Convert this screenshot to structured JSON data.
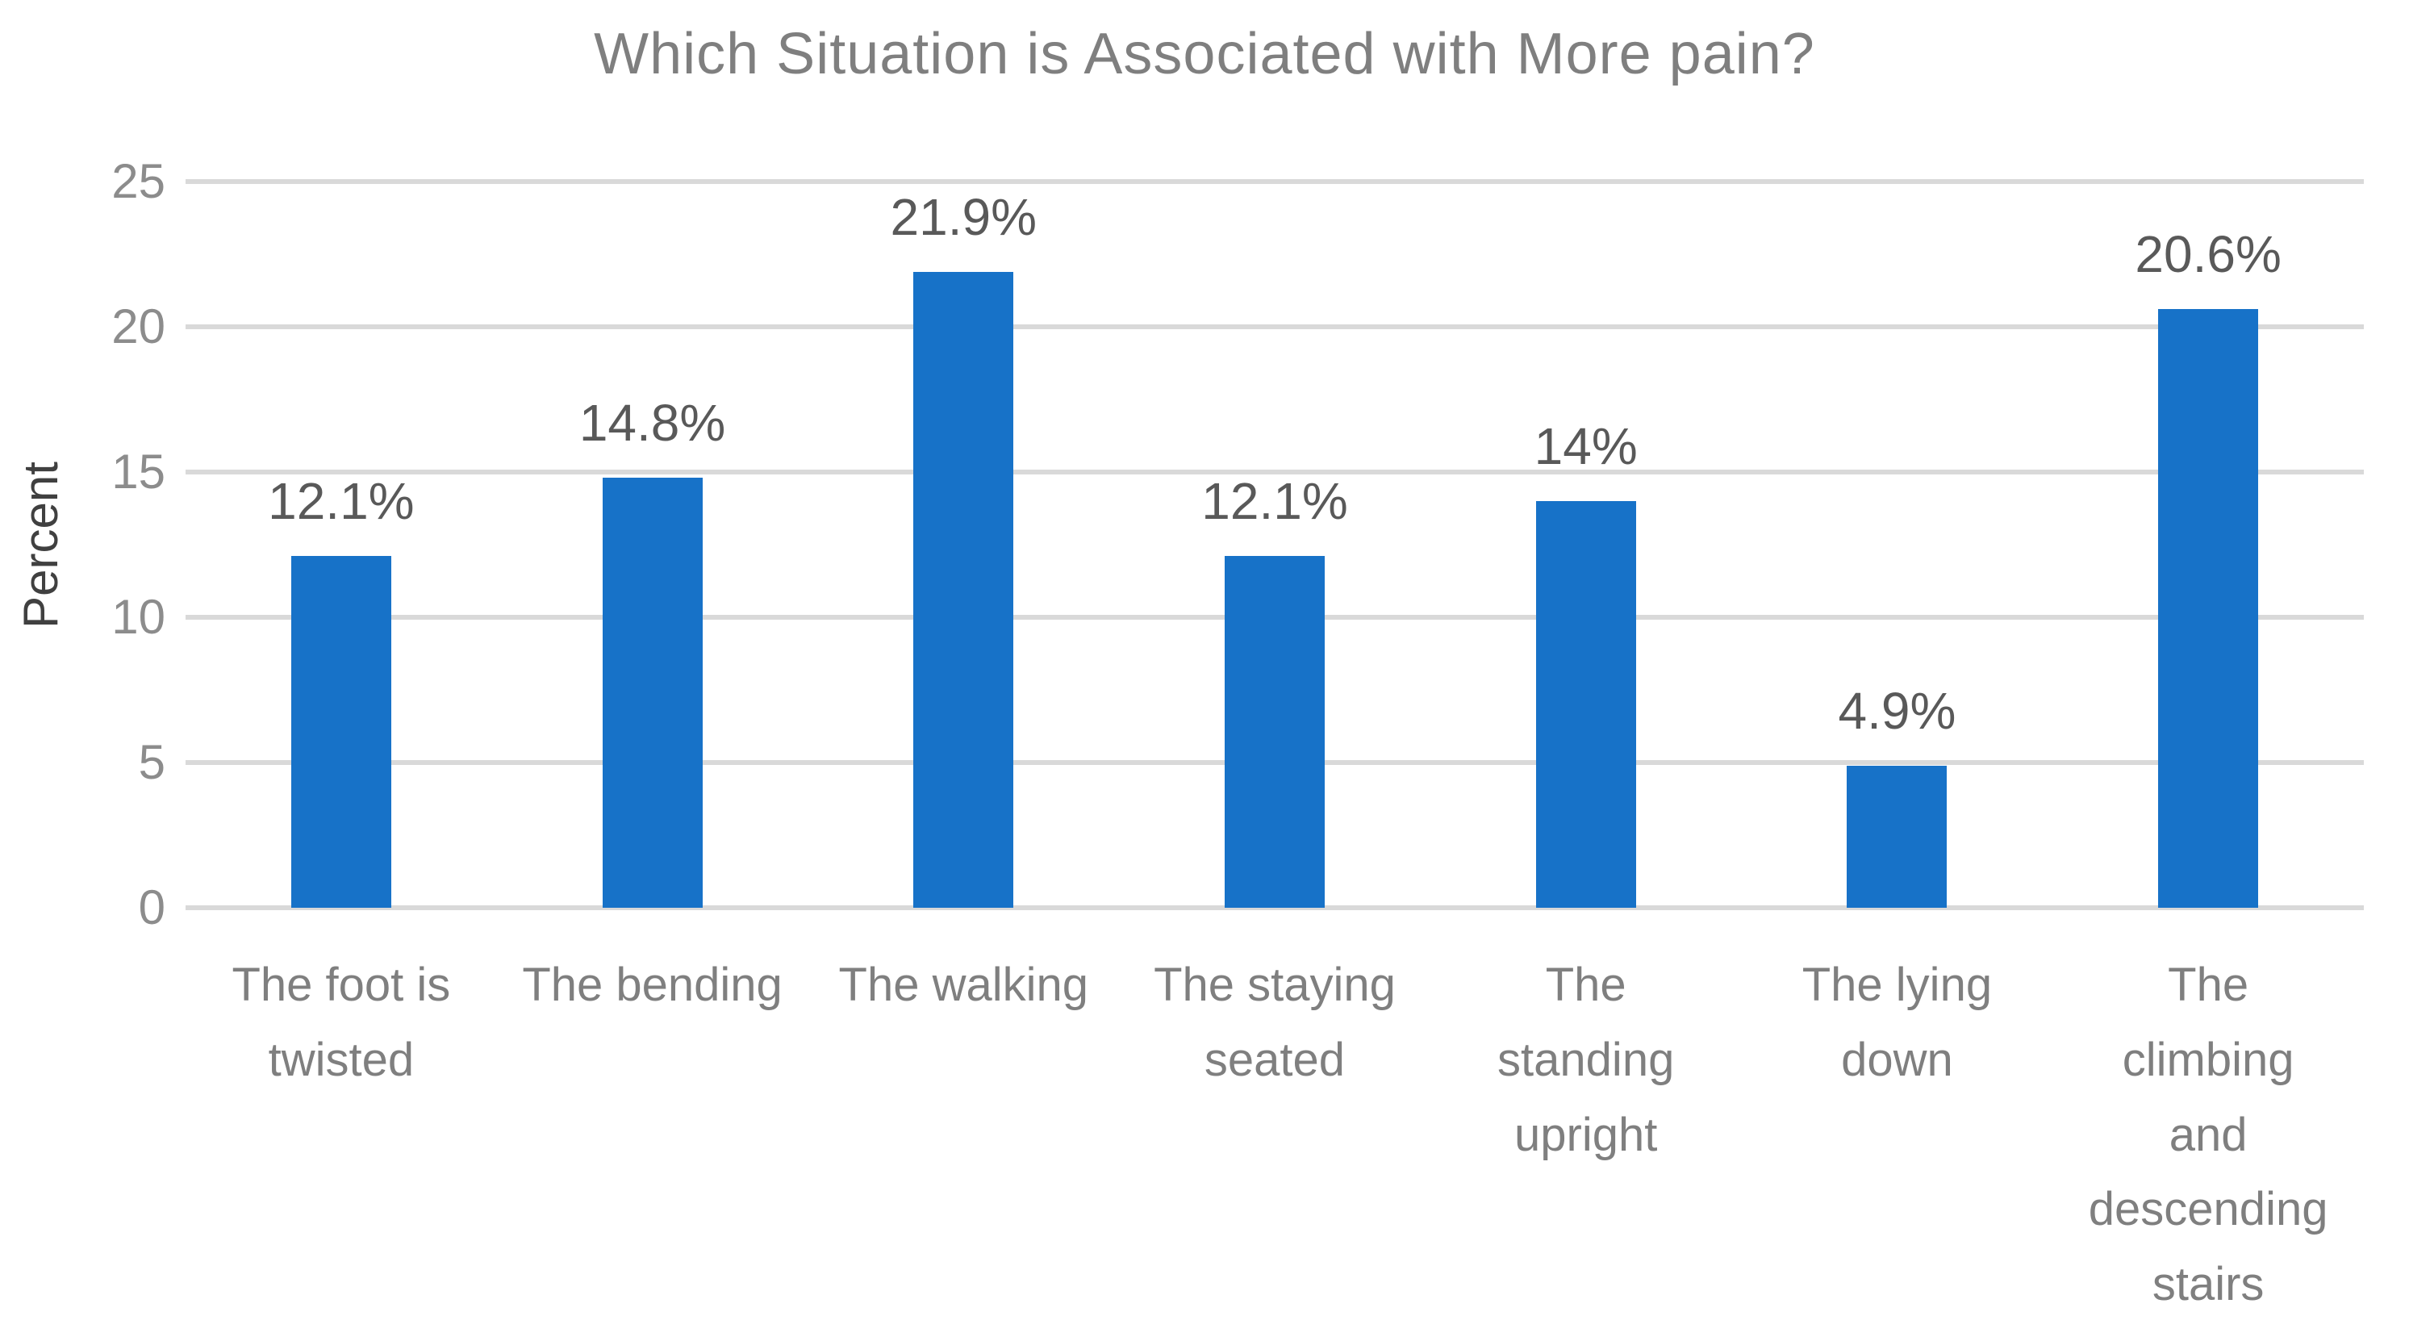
{
  "colors": {
    "bar": "#1772c8",
    "gridline": "#d9d9d9",
    "title_text": "#7f7f7f",
    "tick_text": "#8c8c8c",
    "category_text": "#7f7f7f",
    "value_label_text": "#595959",
    "y_axis_title_text": "#404040",
    "background": "#ffffff"
  },
  "chart_data": {
    "type": "bar",
    "title": "Which Situation is Associated with More pain?",
    "xlabel": "",
    "ylabel": "Percent",
    "ylim": [
      0,
      25
    ],
    "yticks": [
      0,
      5,
      10,
      15,
      20,
      25
    ],
    "grid": true,
    "legend": false,
    "categories": [
      "The foot is twisted",
      "The bending",
      "The walking",
      "The staying seated",
      "The standing upright",
      "The lying down",
      "The climbing and descending stairs"
    ],
    "category_label_lines": [
      [
        "The foot is",
        "twisted"
      ],
      [
        "The bending"
      ],
      [
        "The walking"
      ],
      [
        "The staying",
        "seated"
      ],
      [
        "The",
        "standing",
        "upright"
      ],
      [
        "The lying",
        "down"
      ],
      [
        "The",
        "climbing",
        "and",
        "descending",
        "stairs"
      ]
    ],
    "values": [
      12.1,
      14.8,
      21.9,
      12.1,
      14,
      4.9,
      20.6
    ],
    "data_labels": [
      "12.1%",
      "14.8%",
      "21.9%",
      "12.1%",
      "14%",
      "4.9%",
      "20.6%"
    ]
  }
}
